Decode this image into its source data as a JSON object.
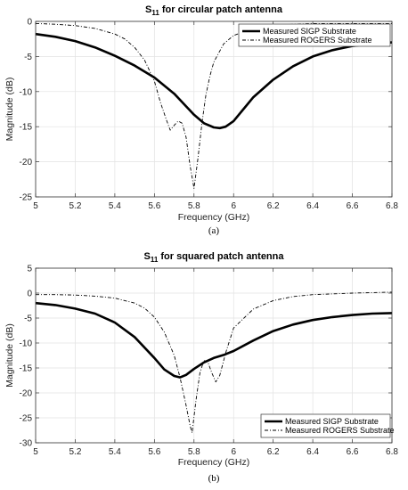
{
  "chart_data": [
    {
      "type": "line",
      "title_main": "S",
      "title_sub": "11",
      "title_rest": " for circular patch antenna",
      "xlabel": "Frequency (GHz)",
      "ylabel": "Magnitude (dB)",
      "xlim": [
        5,
        6.8
      ],
      "ylim": [
        -25,
        0
      ],
      "xticks": [
        5,
        5.2,
        5.4,
        5.6,
        5.8,
        6,
        6.2,
        6.4,
        6.6,
        6.8
      ],
      "yticks": [
        0,
        -5,
        -10,
        -15,
        -20,
        -25
      ],
      "xtick_labels": [
        "5",
        "5.2",
        "5.4",
        "5.6",
        "5.8",
        "6",
        "6.2",
        "6.4",
        "6.6",
        "6.8"
      ],
      "ytick_labels": [
        "0",
        "-5",
        "-10",
        "-15",
        "-20",
        "-25"
      ],
      "grid": true,
      "legend_position": "top-right",
      "panel_label": "(a)",
      "series": [
        {
          "name": "Measured SIGP Substrate",
          "style": "solid-thick",
          "color": "#000000",
          "x": [
            5.0,
            5.1,
            5.2,
            5.3,
            5.4,
            5.5,
            5.6,
            5.7,
            5.75,
            5.8,
            5.85,
            5.9,
            5.93,
            5.96,
            6.0,
            6.05,
            6.1,
            6.2,
            6.3,
            6.4,
            6.5,
            6.6,
            6.7,
            6.8
          ],
          "y": [
            -1.8,
            -2.2,
            -2.8,
            -3.7,
            -4.9,
            -6.3,
            -8.0,
            -10.3,
            -11.8,
            -13.3,
            -14.5,
            -15.1,
            -15.2,
            -15.0,
            -14.2,
            -12.5,
            -10.8,
            -8.3,
            -6.4,
            -5.0,
            -4.1,
            -3.5,
            -3.2,
            -3.0
          ]
        },
        {
          "name": "Measured ROGERS Substrate",
          "style": "dash-dot",
          "color": "#000000",
          "x": [
            5.0,
            5.1,
            5.2,
            5.3,
            5.4,
            5.45,
            5.5,
            5.55,
            5.6,
            5.63,
            5.66,
            5.68,
            5.7,
            5.72,
            5.74,
            5.76,
            5.78,
            5.8,
            5.82,
            5.84,
            5.86,
            5.88,
            5.9,
            5.95,
            6.0,
            6.1,
            6.2,
            6.3,
            6.4,
            6.6,
            6.8
          ],
          "y": [
            -0.3,
            -0.4,
            -0.6,
            -1.0,
            -1.8,
            -2.5,
            -3.7,
            -5.5,
            -8.5,
            -11.5,
            -14.0,
            -15.5,
            -14.8,
            -14.2,
            -14.5,
            -16.5,
            -20.5,
            -23.8,
            -19.5,
            -14.5,
            -10.5,
            -7.8,
            -5.8,
            -3.2,
            -2.0,
            -1.0,
            -0.6,
            -0.4,
            -0.3,
            -0.3,
            -0.3
          ]
        }
      ]
    },
    {
      "type": "line",
      "title_main": "S",
      "title_sub": "11",
      "title_rest": " for squared patch antenna",
      "xlabel": "Frequency (GHz)",
      "ylabel": "Magnitude (dB)",
      "xlim": [
        5,
        6.8
      ],
      "ylim": [
        -30,
        5
      ],
      "xticks": [
        5,
        5.2,
        5.4,
        5.6,
        5.8,
        6,
        6.2,
        6.4,
        6.6,
        6.8
      ],
      "yticks": [
        5,
        0,
        -5,
        -10,
        -15,
        -20,
        -25,
        -30
      ],
      "xtick_labels": [
        "5",
        "5.2",
        "5.4",
        "5.6",
        "5.8",
        "6",
        "6.2",
        "6.4",
        "6.6",
        "6.8"
      ],
      "ytick_labels": [
        "5",
        "0",
        "-5",
        "-10",
        "-15",
        "-20",
        "-25",
        "-30"
      ],
      "grid": true,
      "legend_position": "bottom-right",
      "panel_label": "(b)",
      "series": [
        {
          "name": "Measured SIGP Substrate",
          "style": "solid-thick",
          "color": "#000000",
          "x": [
            5.0,
            5.1,
            5.2,
            5.3,
            5.4,
            5.5,
            5.6,
            5.65,
            5.7,
            5.73,
            5.76,
            5.8,
            5.85,
            5.9,
            5.95,
            6.0,
            6.1,
            6.2,
            6.3,
            6.4,
            6.5,
            6.6,
            6.7,
            6.8
          ],
          "y": [
            -2.0,
            -2.4,
            -3.1,
            -4.1,
            -5.9,
            -8.8,
            -13.0,
            -15.3,
            -16.6,
            -16.9,
            -16.4,
            -15.2,
            -13.9,
            -13.0,
            -12.4,
            -11.6,
            -9.5,
            -7.6,
            -6.3,
            -5.4,
            -4.8,
            -4.4,
            -4.1,
            -4.0
          ]
        },
        {
          "name": "Measured ROGERS Substrate",
          "style": "dash-dot",
          "color": "#000000",
          "x": [
            5.0,
            5.1,
            5.2,
            5.3,
            5.4,
            5.5,
            5.55,
            5.6,
            5.65,
            5.7,
            5.73,
            5.76,
            5.78,
            5.79,
            5.81,
            5.83,
            5.85,
            5.87,
            5.89,
            5.91,
            5.93,
            5.96,
            6.0,
            6.1,
            6.2,
            6.3,
            6.4,
            6.6,
            6.8
          ],
          "y": [
            -0.3,
            -0.3,
            -0.4,
            -0.6,
            -1.0,
            -2.0,
            -3.0,
            -4.8,
            -7.8,
            -12.5,
            -17.0,
            -22.5,
            -26.5,
            -28.0,
            -21.5,
            -16.0,
            -13.5,
            -13.8,
            -16.0,
            -17.8,
            -16.5,
            -12.0,
            -7.0,
            -3.2,
            -1.5,
            -0.7,
            -0.3,
            0.0,
            0.2
          ]
        }
      ]
    }
  ]
}
